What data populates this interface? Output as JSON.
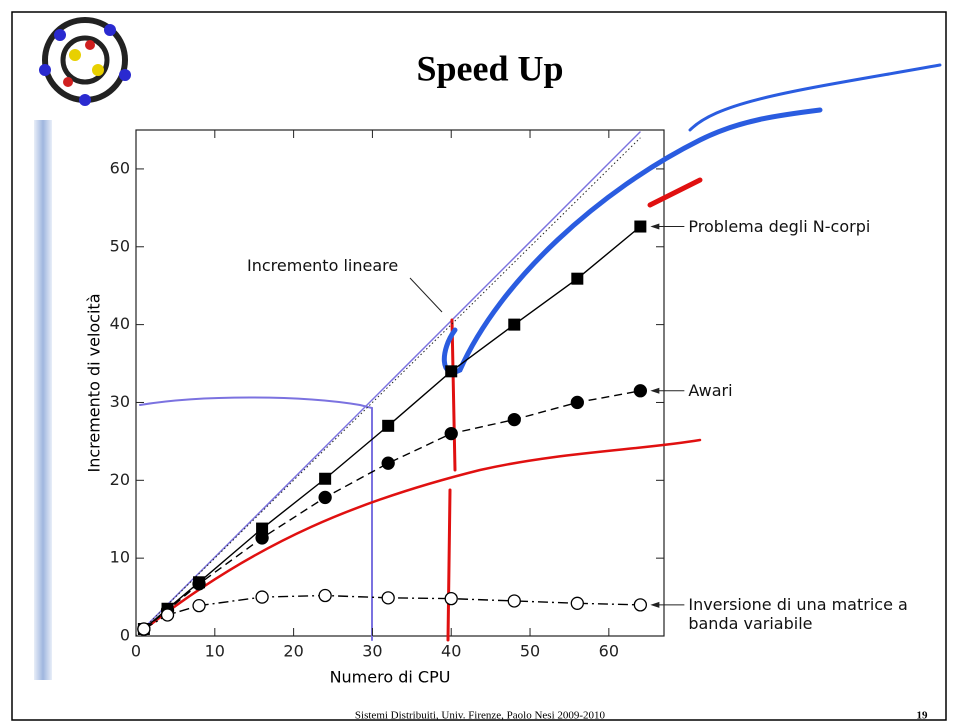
{
  "slide": {
    "title": "Speed Up",
    "footer": "Sistemi Distribuiti, Univ. Firenze, Paolo Nesi 2009-2010",
    "page_number": "19"
  },
  "chart_data": {
    "type": "line",
    "xlabel": "Numero di CPU",
    "ylabel": "Incremento di velocità",
    "x": [
      1,
      4,
      8,
      16,
      24,
      32,
      40,
      48,
      56,
      64
    ],
    "series": [
      {
        "name": "Problema degli N-corpi",
        "color": "#000000",
        "marker": "square",
        "dash": "solid",
        "values": [
          0.9,
          3.5,
          6.9,
          13.8,
          20.2,
          27.0,
          34.0,
          40.0,
          45.9,
          52.6
        ]
      },
      {
        "name": "Awari",
        "color": "#000000",
        "marker": "circle",
        "dash": "dashed",
        "values": [
          0.9,
          3.3,
          6.7,
          12.6,
          17.8,
          22.2,
          26.0,
          27.8,
          30.0,
          31.5
        ]
      },
      {
        "name": "Inversione di una matrice a banda variabile",
        "color": "#000000",
        "marker": "open-circle",
        "dash": "dashdot",
        "values": [
          0.9,
          2.7,
          3.9,
          5.0,
          5.2,
          4.9,
          4.8,
          4.5,
          4.2,
          4.0
        ]
      }
    ],
    "reference": {
      "name": "Incremento lineare",
      "x": [
        0,
        64
      ],
      "values": [
        0,
        64
      ]
    },
    "xlim": [
      0,
      67
    ],
    "ylim": [
      0,
      65
    ],
    "xticks": [
      0,
      10,
      20,
      30,
      40,
      50,
      60
    ],
    "yticks": [
      0,
      10,
      20,
      30,
      40,
      50,
      60
    ]
  }
}
